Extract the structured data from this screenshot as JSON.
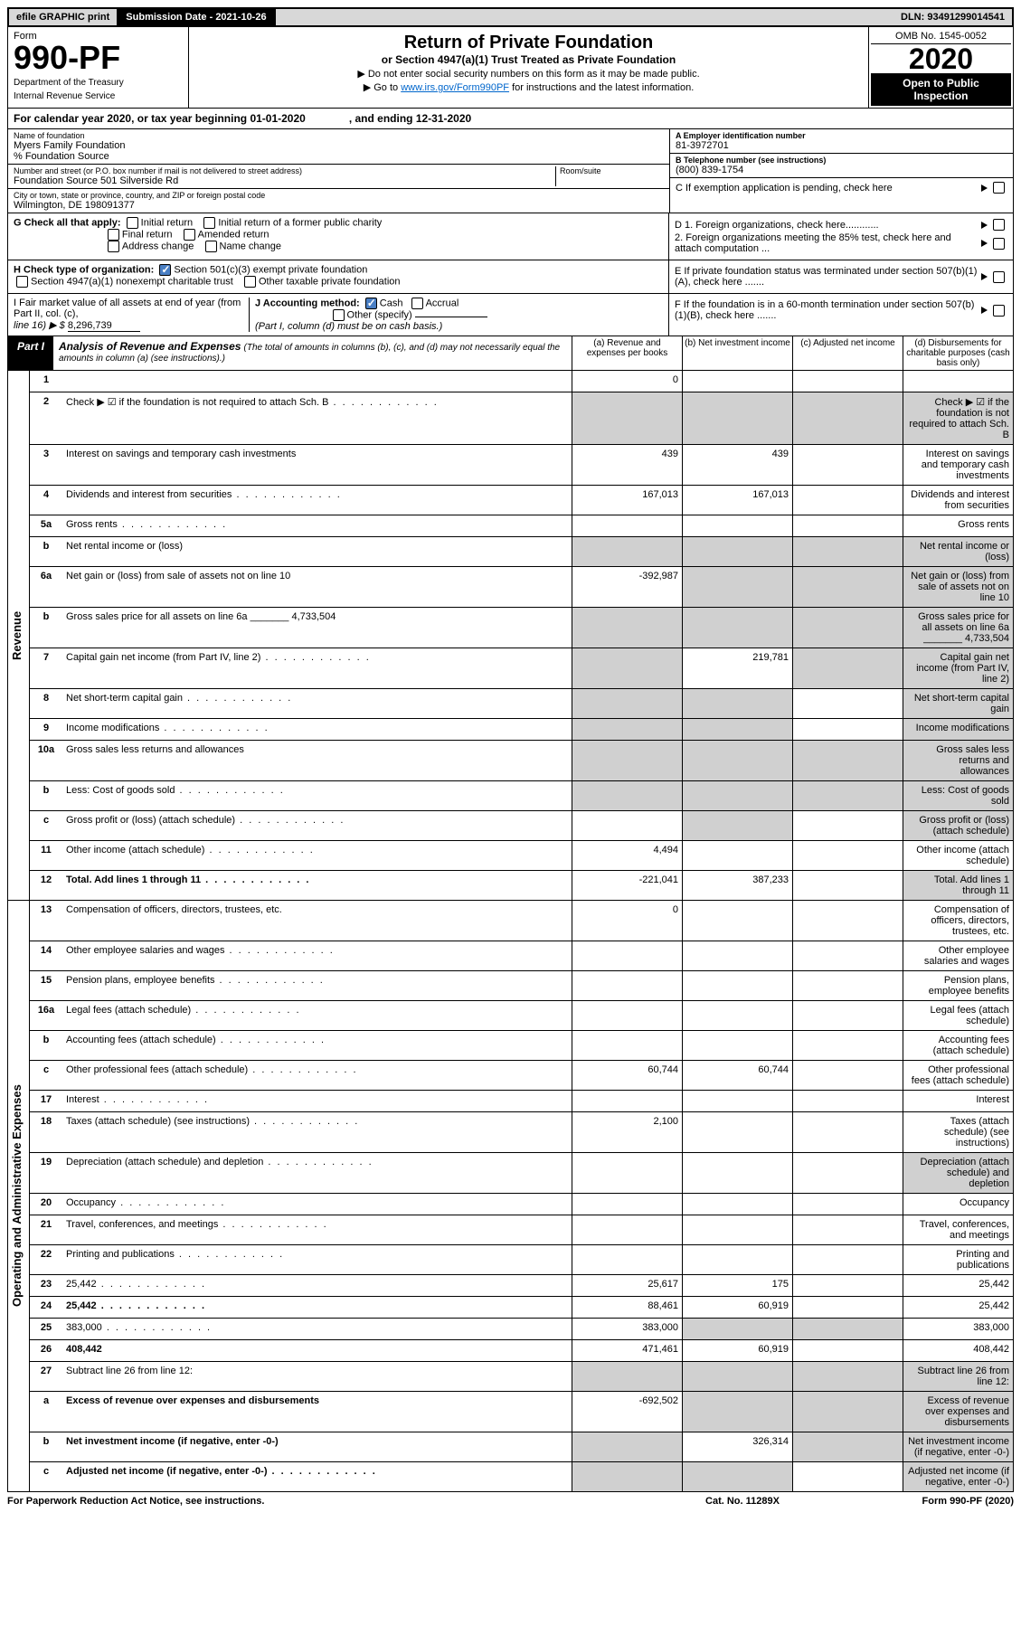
{
  "topbar": {
    "efile_label": "efile GRAPHIC print",
    "submission_label": "Submission Date - 2021-10-26",
    "dln_label": "DLN: 93491299014541"
  },
  "header": {
    "form_label": "Form",
    "form_number": "990-PF",
    "dept1": "Department of the Treasury",
    "dept2": "Internal Revenue Service",
    "title": "Return of Private Foundation",
    "subtitle": "or Section 4947(a)(1) Trust Treated as Private Foundation",
    "inst1": "▶ Do not enter social security numbers on this form as it may be made public.",
    "inst2_pre": "▶ Go to ",
    "inst2_link": "www.irs.gov/Form990PF",
    "inst2_post": " for instructions and the latest information.",
    "omb": "OMB No. 1545-0052",
    "year": "2020",
    "open_public": "Open to Public Inspection"
  },
  "calendar": "For calendar year 2020, or tax year beginning 01-01-2020    , and ending 12-31-2020",
  "info": {
    "name_lbl": "Name of foundation",
    "name": "Myers Family Foundation",
    "co_lbl": "% Foundation Source",
    "addr_lbl": "Number and street (or P.O. box number if mail is not delivered to street address)",
    "addr": "Foundation Source 501 Silverside Rd",
    "room_lbl": "Room/suite",
    "city_lbl": "City or town, state or province, country, and ZIP or foreign postal code",
    "city": "Wilmington, DE  198091377",
    "ein_lbl": "A Employer identification number",
    "ein": "81-3972701",
    "tel_lbl": "B Telephone number (see instructions)",
    "tel": "(800) 839-1754",
    "c_lbl": "C If exemption application is pending, check here",
    "d1": "D 1. Foreign organizations, check here............",
    "d2": "2. Foreign organizations meeting the 85% test, check here and attach computation ...",
    "e_lbl": "E  If private foundation status was terminated under section 507(b)(1)(A), check here .......",
    "f_lbl": "F  If the foundation is in a 60-month termination under section 507(b)(1)(B), check here .......",
    "g_lbl": "G Check all that apply:",
    "g_opts": [
      "Initial return",
      "Initial return of a former public charity",
      "Final return",
      "Amended return",
      "Address change",
      "Name change"
    ],
    "h_lbl": "H Check type of organization:",
    "h1": "Section 501(c)(3) exempt private foundation",
    "h2": "Section 4947(a)(1) nonexempt charitable trust",
    "h3": "Other taxable private foundation",
    "i_lbl": "I Fair market value of all assets at end of year (from Part II, col. (c),",
    "i_line": "line 16) ▶ $",
    "i_val": "8,296,739",
    "j_lbl": "J Accounting method:",
    "j_cash": "Cash",
    "j_accrual": "Accrual",
    "j_other": "Other (specify)",
    "j_note": "(Part I, column (d) must be on cash basis.)"
  },
  "part1": {
    "label": "Part I",
    "title": "Analysis of Revenue and Expenses",
    "note": "(The total of amounts in columns (b), (c), and (d) may not necessarily equal the amounts in column (a) (see instructions).)",
    "col_a": "(a)   Revenue and expenses per books",
    "col_b": "(b)   Net investment income",
    "col_c": "(c)   Adjusted net income",
    "col_d": "(d)   Disbursements for charitable purposes (cash basis only)"
  },
  "sections": {
    "revenue": "Revenue",
    "expenses": "Operating and Administrative Expenses"
  },
  "lines": [
    {
      "n": "1",
      "d": "",
      "a": "0",
      "b": "",
      "c": ""
    },
    {
      "n": "2",
      "d": "Check ▶ ☑ if the foundation is not required to attach Sch. B",
      "dots": true,
      "shadeA": true,
      "shadeB": true,
      "shadeC": true,
      "shadeD": true
    },
    {
      "n": "3",
      "d": "Interest on savings and temporary cash investments",
      "a": "439",
      "b": "439"
    },
    {
      "n": "4",
      "d": "Dividends and interest from securities",
      "dots": true,
      "a": "167,013",
      "b": "167,013"
    },
    {
      "n": "5a",
      "d": "Gross rents",
      "dots": true
    },
    {
      "n": "b",
      "d": "Net rental income or (loss)",
      "shadeA": true,
      "shadeB": true,
      "shadeC": true,
      "shadeD": true
    },
    {
      "n": "6a",
      "d": "Net gain or (loss) from sale of assets not on line 10",
      "a": "-392,987",
      "shadeB": true,
      "shadeC": true,
      "shadeD": true
    },
    {
      "n": "b",
      "d": "Gross sales price for all assets on line 6a _______ 4,733,504",
      "shadeA": true,
      "shadeB": true,
      "shadeC": true,
      "shadeD": true
    },
    {
      "n": "7",
      "d": "Capital gain net income (from Part IV, line 2)",
      "dots": true,
      "shadeA": true,
      "b": "219,781",
      "shadeC": true,
      "shadeD": true
    },
    {
      "n": "8",
      "d": "Net short-term capital gain",
      "dots": true,
      "shadeA": true,
      "shadeB": true,
      "shadeD": true
    },
    {
      "n": "9",
      "d": "Income modifications",
      "dots": true,
      "shadeA": true,
      "shadeB": true,
      "shadeD": true
    },
    {
      "n": "10a",
      "d": "Gross sales less returns and allowances",
      "shadeA": true,
      "shadeB": true,
      "shadeC": true,
      "shadeD": true
    },
    {
      "n": "b",
      "d": "Less: Cost of goods sold",
      "dots": true,
      "shadeA": true,
      "shadeB": true,
      "shadeC": true,
      "shadeD": true
    },
    {
      "n": "c",
      "d": "Gross profit or (loss) (attach schedule)",
      "dots": true,
      "shadeB": true,
      "shadeD": true
    },
    {
      "n": "11",
      "d": "Other income (attach schedule)",
      "dots": true,
      "a": "4,494"
    },
    {
      "n": "12",
      "d": "Total. Add lines 1 through 11",
      "dots": true,
      "bold": true,
      "a": "-221,041",
      "b": "387,233",
      "shadeD": true
    }
  ],
  "exp_lines": [
    {
      "n": "13",
      "d": "Compensation of officers, directors, trustees, etc.",
      "a": "0"
    },
    {
      "n": "14",
      "d": "Other employee salaries and wages",
      "dots": true
    },
    {
      "n": "15",
      "d": "Pension plans, employee benefits",
      "dots": true
    },
    {
      "n": "16a",
      "d": "Legal fees (attach schedule)",
      "dots": true
    },
    {
      "n": "b",
      "d": "Accounting fees (attach schedule)",
      "dots": true
    },
    {
      "n": "c",
      "d": "Other professional fees (attach schedule)",
      "dots": true,
      "a": "60,744",
      "b": "60,744"
    },
    {
      "n": "17",
      "d": "Interest",
      "dots": true
    },
    {
      "n": "18",
      "d": "Taxes (attach schedule) (see instructions)",
      "dots": true,
      "a": "2,100"
    },
    {
      "n": "19",
      "d": "Depreciation (attach schedule) and depletion",
      "dots": true,
      "shadeD": true
    },
    {
      "n": "20",
      "d": "Occupancy",
      "dots": true
    },
    {
      "n": "21",
      "d": "Travel, conferences, and meetings",
      "dots": true
    },
    {
      "n": "22",
      "d": "Printing and publications",
      "dots": true
    },
    {
      "n": "23",
      "d": "25,442",
      "dots": true,
      "a": "25,617",
      "b": "175"
    },
    {
      "n": "24",
      "d": "25,442",
      "dots": true,
      "bold": true,
      "a": "88,461",
      "b": "60,919"
    },
    {
      "n": "25",
      "d": "383,000",
      "dots": true,
      "a": "383,000",
      "shadeB": true,
      "shadeC": true
    },
    {
      "n": "26",
      "d": "408,442",
      "bold": true,
      "a": "471,461",
      "b": "60,919"
    },
    {
      "n": "27",
      "d": "Subtract line 26 from line 12:",
      "shadeA": true,
      "shadeB": true,
      "shadeC": true,
      "shadeD": true
    },
    {
      "n": "a",
      "d": "Excess of revenue over expenses and disbursements",
      "bold": true,
      "a": "-692,502",
      "shadeB": true,
      "shadeC": true,
      "shadeD": true
    },
    {
      "n": "b",
      "d": "Net investment income (if negative, enter -0-)",
      "bold": true,
      "shadeA": true,
      "b": "326,314",
      "shadeC": true,
      "shadeD": true
    },
    {
      "n": "c",
      "d": "Adjusted net income (if negative, enter -0-)",
      "dots": true,
      "bold": true,
      "shadeA": true,
      "shadeB": true,
      "shadeD": true
    }
  ],
  "footer": {
    "left": "For Paperwork Reduction Act Notice, see instructions.",
    "center": "Cat. No. 11289X",
    "right": "Form 990-PF (2020)"
  }
}
